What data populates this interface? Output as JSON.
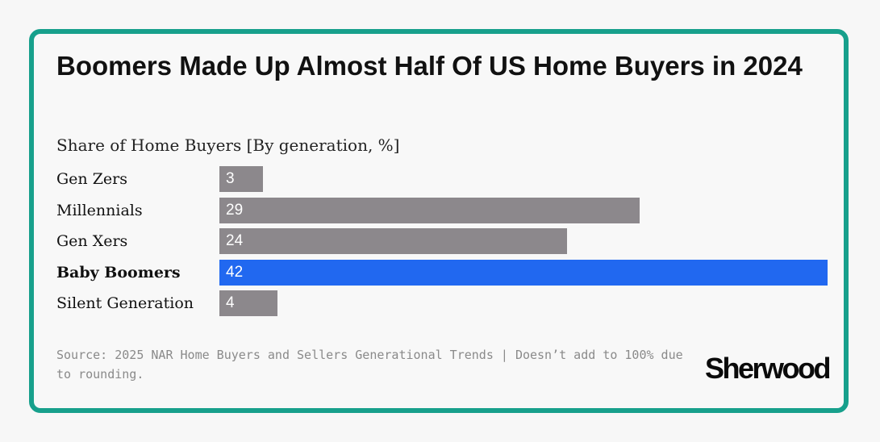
{
  "header": {
    "title": "Boomers Made Up Almost Half Of US Home Buyers in 2024",
    "subtitle": "Share of Home Buyers [By generation, %]"
  },
  "chart_data": {
    "type": "bar",
    "orientation": "horizontal",
    "title": "Boomers Made Up Almost Half Of US Home Buyers in 2024",
    "subtitle": "Share of Home Buyers [By generation, %]",
    "categories": [
      "Gen Zers",
      "Millennials",
      "Gen Xers",
      "Baby Boomers",
      "Silent Generation"
    ],
    "values": [
      3,
      29,
      24,
      42,
      4
    ],
    "highlight": "Baby Boomers",
    "xlim": [
      0,
      42
    ],
    "grid": false,
    "legend": "none",
    "colors": {
      "default": "#8c888c",
      "highlight": "#2168f0"
    }
  },
  "footer": {
    "source": "Source: 2025 NAR Home Buyers and Sellers Generational Trends | Doesn’t add to 100% due to rounding.",
    "logo": "Sherwood"
  },
  "colors": {
    "border": "#17a08c"
  }
}
